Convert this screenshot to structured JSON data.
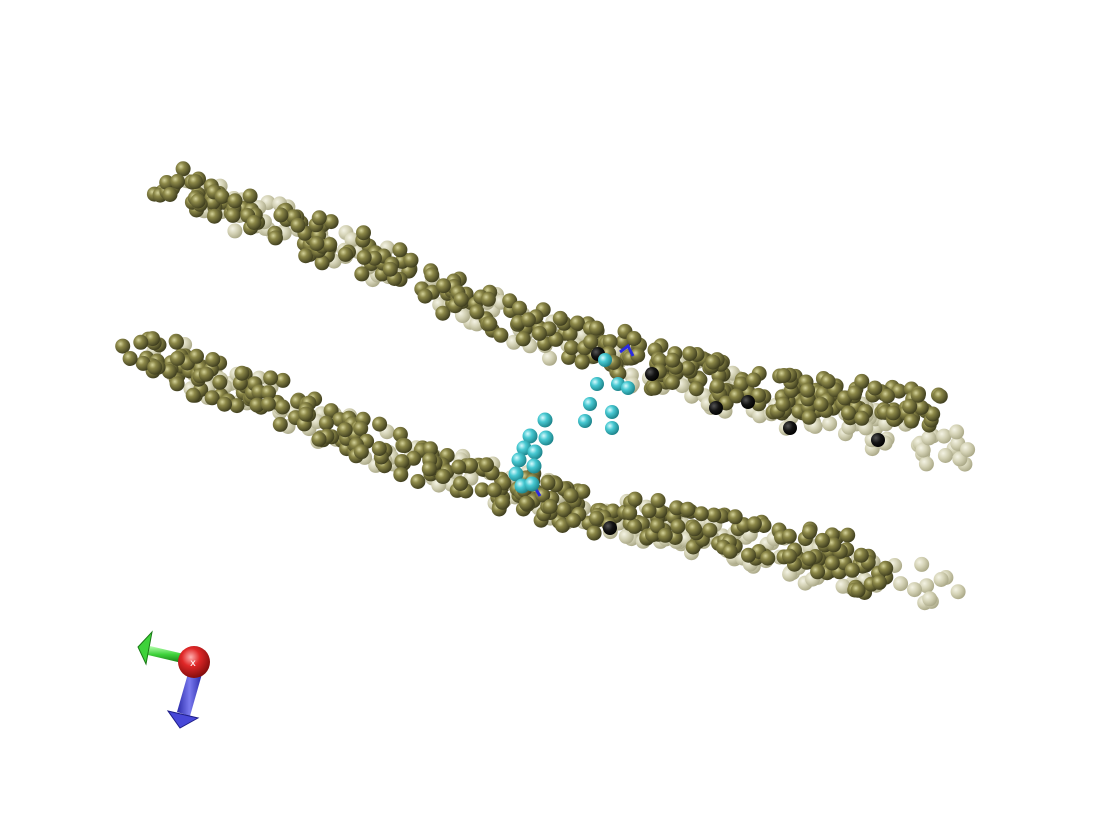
{
  "scene": {
    "background": "#ffffff",
    "membrane_bead_color": "#6f6b3a",
    "membrane_far_bead_color": "#c9c8a9",
    "dark_bead_color": "#111111",
    "peptide_bead_color": "#3fc6cc",
    "linker_color": "#2a2adf"
  },
  "axes": {
    "x_label": "x",
    "x_color": "#e02020",
    "y_color": "#38d038",
    "z_color": "#5050e0",
    "x_icon": "red-sphere-x-axis-icon",
    "y_icon": "green-arrow-y-axis-icon",
    "z_icon": "blue-arrow-z-axis-icon"
  }
}
